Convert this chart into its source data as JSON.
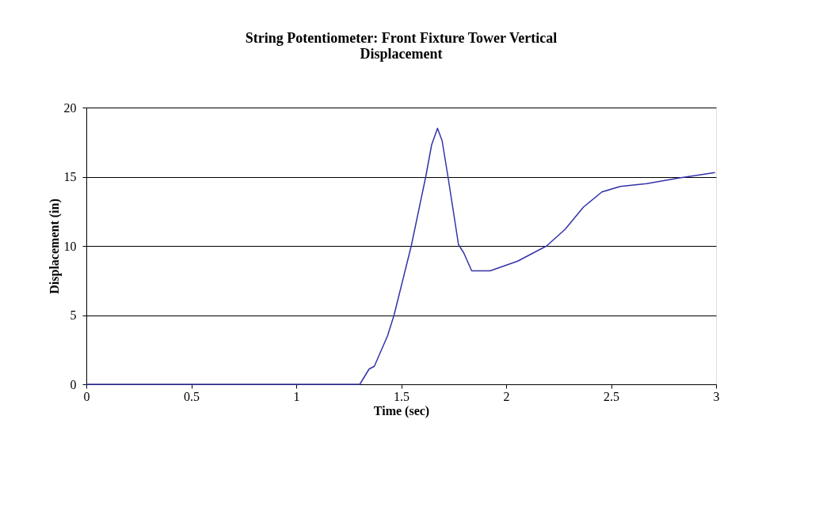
{
  "chart_data": {
    "type": "line",
    "title": [
      "String Potentiometer: Front Fixture Tower Vertical",
      "Displacement"
    ],
    "xlabel": "Time (sec)",
    "ylabel": "Displacement (in)",
    "x": [
      0,
      1.303,
      1.347,
      1.372,
      1.435,
      1.466,
      1.548,
      1.617,
      1.645,
      1.673,
      1.695,
      1.723,
      1.773,
      1.798,
      1.836,
      1.924,
      2.055,
      2.193,
      2.281,
      2.368,
      2.456,
      2.544,
      2.669,
      2.82,
      2.995
    ],
    "series": [
      {
        "color": "#3333aa",
        "values": [
          0,
          0,
          1.1,
          1.3,
          3.5,
          5,
          10,
          15,
          17.3,
          18.5,
          17.6,
          15,
          10.1,
          9.5,
          8.2,
          8.2,
          8.9,
          10,
          11.2,
          12.8,
          13.9,
          14.3,
          14.5,
          14.9,
          15.3
        ]
      }
    ],
    "xlim": [
      0,
      3
    ],
    "xticks": [
      0,
      0.5,
      1,
      1.5,
      2,
      2.5,
      3
    ],
    "ylim": [
      0,
      20
    ],
    "yticks": [
      0,
      5,
      10,
      15,
      20
    ],
    "grid": "y",
    "legend": false,
    "marker": "none",
    "line_style": "solid"
  }
}
